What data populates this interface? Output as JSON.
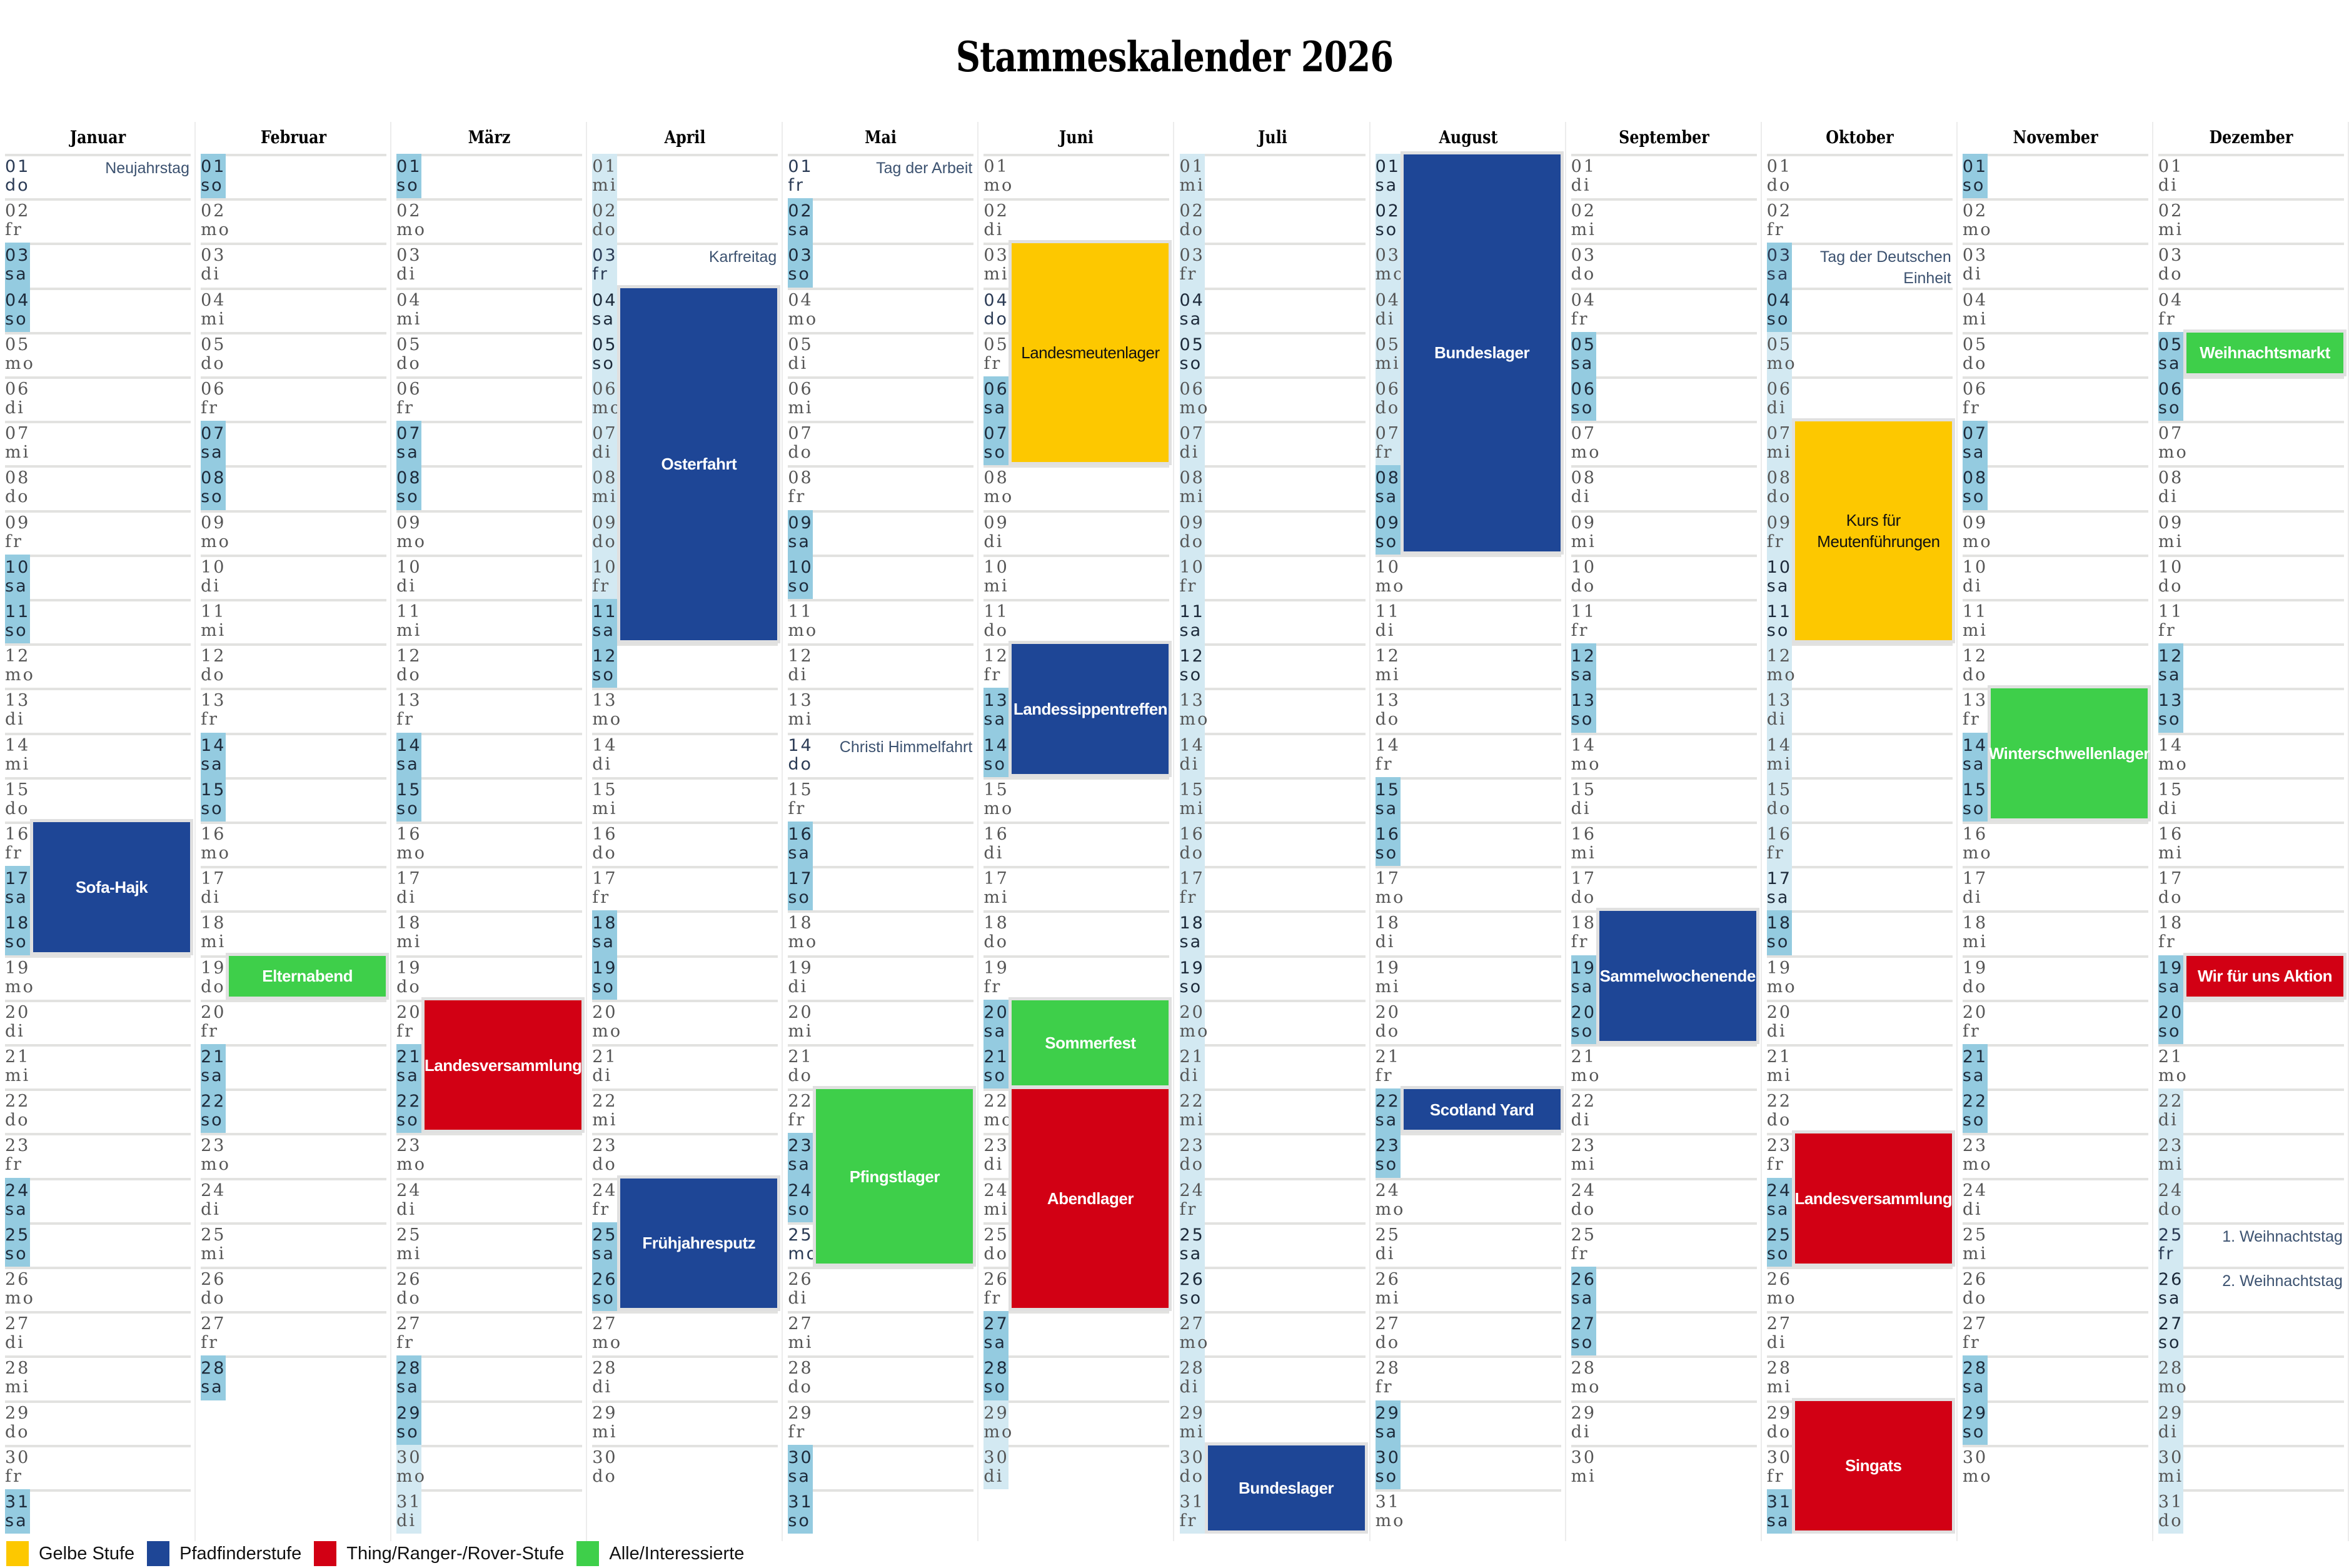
{
  "title": "Stammeskalender 2026",
  "colors": {
    "gelb": "#fdc800",
    "pfadfinder": "#1e4696",
    "rover": "#d20014",
    "alle": "#3ecf4a",
    "weekend": "#94cbe0",
    "ferien": "#d3e9f2"
  },
  "weekday_names": [
    "mo",
    "di",
    "mi",
    "do",
    "fr",
    "sa",
    "so"
  ],
  "months": [
    {
      "name": "Januar",
      "days": 31,
      "first_weekday": 3,
      "ferien": [],
      "holidays": [
        {
          "day": 1,
          "label": "Neujahrstag"
        }
      ]
    },
    {
      "name": "Februar",
      "days": 28,
      "first_weekday": 6,
      "ferien": [],
      "holidays": []
    },
    {
      "name": "März",
      "days": 31,
      "first_weekday": 6,
      "ferien": [
        30,
        31
      ],
      "holidays": []
    },
    {
      "name": "April",
      "days": 30,
      "first_weekday": 2,
      "ferien": [
        1,
        2,
        3,
        4,
        5,
        6,
        7,
        8,
        9,
        10
      ],
      "holidays": [
        {
          "day": 3,
          "label": "Karfreitag"
        }
      ]
    },
    {
      "name": "Mai",
      "days": 31,
      "first_weekday": 4,
      "ferien": [],
      "holidays": [
        {
          "day": 1,
          "label": "Tag der Arbeit"
        },
        {
          "day": 14,
          "label": "Christi Himmelfahrt"
        },
        {
          "day": 25,
          "label": ""
        }
      ]
    },
    {
      "name": "Juni",
      "days": 30,
      "first_weekday": 0,
      "ferien": [
        29,
        30
      ],
      "holidays": [
        {
          "day": 4,
          "label": ""
        }
      ]
    },
    {
      "name": "Juli",
      "days": 31,
      "first_weekday": 2,
      "ferien": [
        1,
        2,
        3,
        4,
        5,
        6,
        7,
        8,
        9,
        10,
        11,
        12,
        13,
        14,
        15,
        16,
        17,
        18,
        19,
        20,
        21,
        22,
        23,
        24,
        25,
        26,
        27,
        28,
        29,
        30,
        31
      ],
      "holidays": []
    },
    {
      "name": "August",
      "days": 31,
      "first_weekday": 5,
      "ferien": [
        1,
        2,
        3,
        4,
        5,
        6,
        7
      ],
      "holidays": []
    },
    {
      "name": "September",
      "days": 30,
      "first_weekday": 1,
      "ferien": [],
      "holidays": []
    },
    {
      "name": "Oktober",
      "days": 31,
      "first_weekday": 3,
      "ferien": [
        5,
        6,
        7,
        8,
        9,
        10,
        11,
        12,
        13,
        14,
        15,
        16,
        17
      ],
      "holidays": [
        {
          "day": 3,
          "label": "Tag der Deutschen Einheit"
        }
      ]
    },
    {
      "name": "November",
      "days": 30,
      "first_weekday": 6,
      "ferien": [],
      "holidays": []
    },
    {
      "name": "Dezember",
      "days": 31,
      "first_weekday": 1,
      "ferien": [
        22,
        23,
        24,
        25,
        26,
        27,
        28,
        29,
        30,
        31
      ],
      "holidays": [
        {
          "day": 25,
          "label": "1. Weihnachtstag"
        },
        {
          "day": 26,
          "label": "2. Weihnachtstag"
        }
      ]
    }
  ],
  "events": [
    {
      "month": 0,
      "start": 16,
      "end": 18,
      "label": "Sofa-Hajk",
      "category": "pfadfinder"
    },
    {
      "month": 1,
      "start": 19,
      "end": 19,
      "label": "Elternabend",
      "category": "alle"
    },
    {
      "month": 2,
      "start": 20,
      "end": 22,
      "label": "Landesversammlung",
      "category": "rover"
    },
    {
      "month": 3,
      "start": 4,
      "end": 11,
      "label": "Osterfahrt",
      "category": "pfadfinder"
    },
    {
      "month": 3,
      "start": 24,
      "end": 26,
      "label": "Frühjahresputz",
      "category": "pfadfinder"
    },
    {
      "month": 4,
      "start": 22,
      "end": 25,
      "label": "Pfingstlager",
      "category": "alle"
    },
    {
      "month": 5,
      "start": 3,
      "end": 7,
      "label": "Landesmeutenlager",
      "category": "gelb"
    },
    {
      "month": 5,
      "start": 12,
      "end": 14,
      "label": "Landessippentreffen",
      "category": "pfadfinder"
    },
    {
      "month": 5,
      "start": 20,
      "end": 21,
      "label": "Sommerfest",
      "category": "alle"
    },
    {
      "month": 5,
      "start": 22,
      "end": 26,
      "label": "Abendlager",
      "category": "rover"
    },
    {
      "month": 6,
      "start": 30,
      "end": 31,
      "label": "Bundeslager",
      "category": "pfadfinder"
    },
    {
      "month": 7,
      "start": 1,
      "end": 9,
      "label": "Bundeslager",
      "category": "pfadfinder"
    },
    {
      "month": 7,
      "start": 22,
      "end": 22,
      "label": "Scotland Yard",
      "category": "pfadfinder"
    },
    {
      "month": 8,
      "start": 18,
      "end": 20,
      "label": "Sammelwochenende",
      "category": "pfadfinder"
    },
    {
      "month": 9,
      "start": 7,
      "end": 11,
      "label": "Kurs für Meutenführungen",
      "category": "gelb"
    },
    {
      "month": 9,
      "start": 23,
      "end": 25,
      "label": "Landesversammlung",
      "category": "rover"
    },
    {
      "month": 9,
      "start": 29,
      "end": 31,
      "label": "Singats",
      "category": "rover"
    },
    {
      "month": 10,
      "start": 13,
      "end": 15,
      "label": "Winterschwellenlager",
      "category": "alle"
    },
    {
      "month": 11,
      "start": 5,
      "end": 5,
      "label": "Weihnachtsmarkt",
      "category": "alle"
    },
    {
      "month": 11,
      "start": 19,
      "end": 19,
      "label": "Wir für uns Aktion",
      "category": "rover"
    }
  ],
  "legend": [
    {
      "category": "gelb",
      "label": "Gelbe Stufe"
    },
    {
      "category": "pfadfinder",
      "label": "Pfadfinderstufe"
    },
    {
      "category": "rover",
      "label": "Thing/Ranger-/Rover-Stufe"
    },
    {
      "category": "alle",
      "label": "Alle/Interessierte"
    }
  ]
}
